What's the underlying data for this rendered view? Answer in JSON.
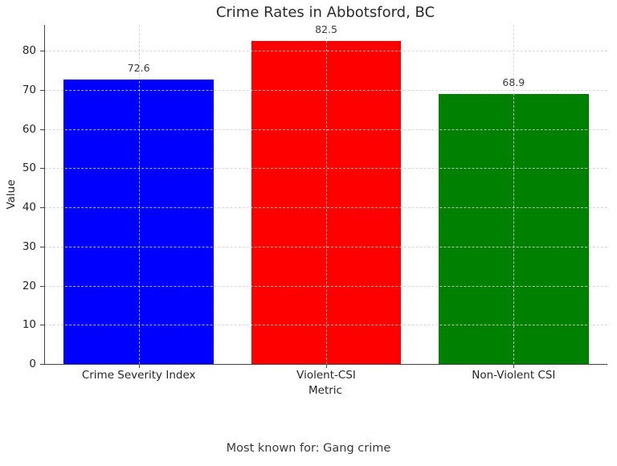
{
  "chart_data": {
    "type": "bar",
    "title": "Crime Rates in Abbotsford, BC",
    "xlabel": "Metric",
    "ylabel": "Value",
    "categories": [
      "Crime Severity Index",
      "Violent-CSI",
      "Non-Violent CSI"
    ],
    "values": [
      72.6,
      82.5,
      68.9
    ],
    "value_labels": [
      "72.6",
      "82.5",
      "68.9"
    ],
    "bar_colors": [
      "#0000ff",
      "#ff0000",
      "#008000"
    ],
    "ylim": [
      0,
      86.6
    ],
    "yticks": [
      0,
      10,
      20,
      30,
      40,
      50,
      60,
      70,
      80
    ],
    "grid": "dashed-both-axes",
    "legend": "none"
  },
  "footer": {
    "caption": "Most known for: Gang crime"
  },
  "colors": {
    "spine": "#444444",
    "grid": "#d2d2d2",
    "text": "#262626",
    "value_label": "#3d3d3d",
    "background": "#ffffff"
  }
}
